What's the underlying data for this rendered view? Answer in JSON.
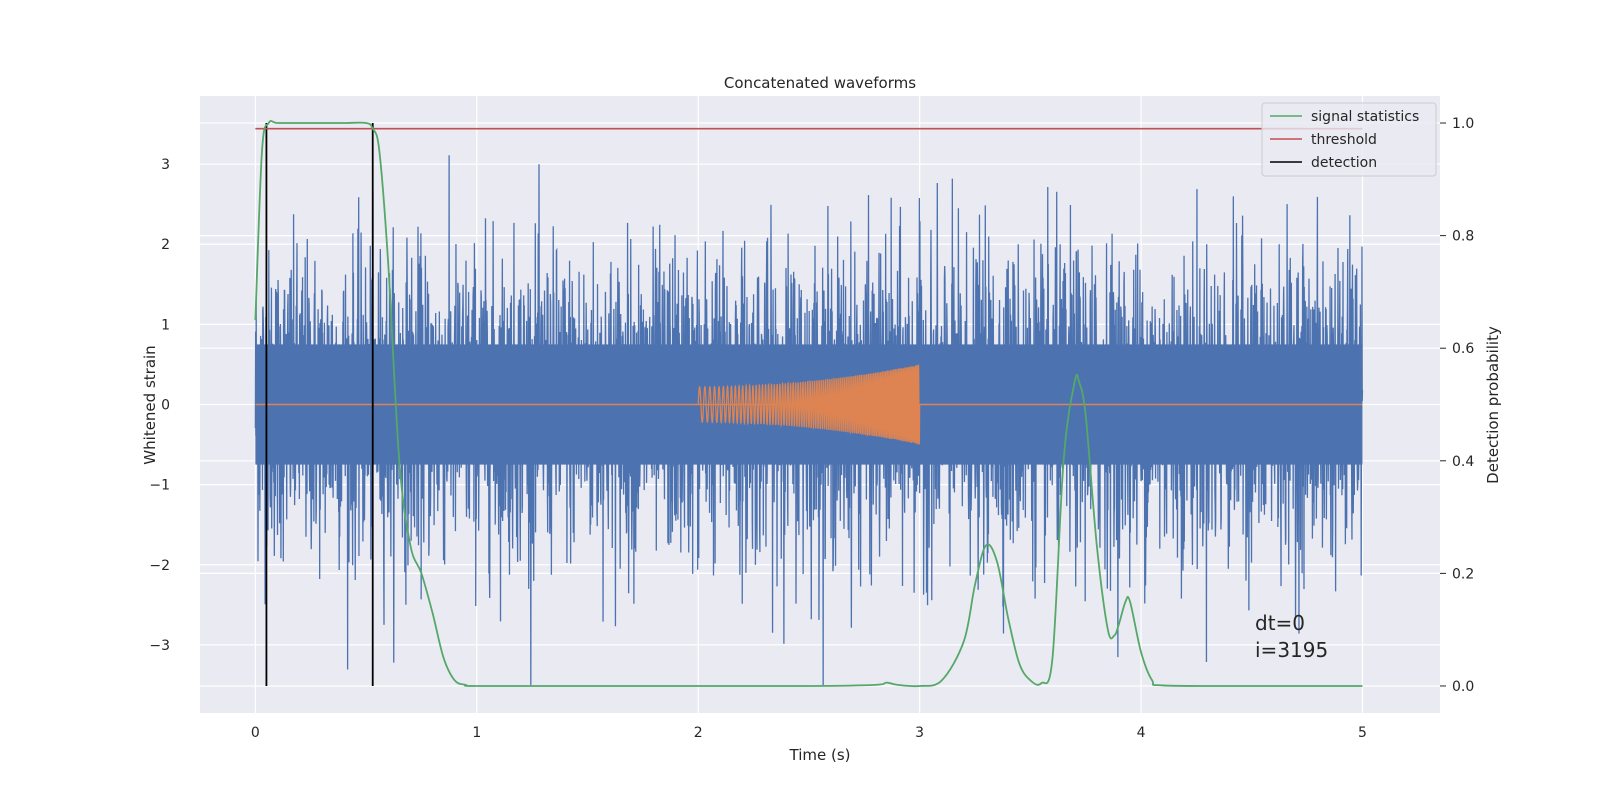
{
  "chart_data": {
    "type": "line",
    "title": "Concatenated waveforms",
    "xlabel": "Time (s)",
    "ylabel": "Whitened strain",
    "y2label": "Detection probability",
    "xlim": [
      -0.25,
      5.35
    ],
    "ylim": [
      -3.85,
      3.85
    ],
    "y2lim": [
      -0.048,
      1.048
    ],
    "x_ticks": [
      0,
      1,
      2,
      3,
      4,
      5
    ],
    "y_ticks": [
      -3,
      -2,
      -1,
      0,
      1,
      2,
      3
    ],
    "y_tick_labels": [
      "−3",
      "−2",
      "−1",
      "0",
      "1",
      "2",
      "3"
    ],
    "y2_ticks": [
      0.0,
      0.2,
      0.4,
      0.6,
      0.8,
      1.0
    ],
    "y2_tick_labels": [
      "0.0",
      "0.2",
      "0.4",
      "0.6",
      "0.8",
      "1.0"
    ],
    "grid": true,
    "legend_position": "top-right",
    "colors": {
      "noise": "#4c72b0",
      "injected_signal": "#dd8452",
      "signal_statistics": "#55a868",
      "threshold": "#c44e52",
      "detection": "#000000",
      "plot_background": "#eaeaf2"
    },
    "noise_series": {
      "x_range": [
        0,
        5
      ],
      "typical_abs_range": [
        1.0,
        2.0
      ],
      "peak_max": 3.3,
      "peak_min": -3.5
    },
    "injected_signal": {
      "x_range": [
        2.0,
        3.0
      ],
      "amplitude_start": 0.22,
      "amplitude_end": 0.5,
      "chirp": true
    },
    "series": [
      {
        "name": "signal statistics",
        "axis": "right",
        "x": [
          0.0,
          0.03,
          0.06,
          0.1,
          0.2,
          0.3,
          0.4,
          0.5,
          0.53,
          0.56,
          0.6,
          0.65,
          0.7,
          0.75,
          0.8,
          0.85,
          0.9,
          0.95,
          1.0,
          1.5,
          2.0,
          2.5,
          2.8,
          2.85,
          2.9,
          3.0,
          3.1,
          3.2,
          3.25,
          3.3,
          3.35,
          3.4,
          3.45,
          3.5,
          3.55,
          3.6,
          3.65,
          3.7,
          3.72,
          3.75,
          3.8,
          3.85,
          3.88,
          3.9,
          3.93,
          3.95,
          4.0,
          4.05,
          4.1,
          4.5,
          5.0
        ],
        "values": [
          0.65,
          0.95,
          1.0,
          1.0,
          1.0,
          1.0,
          1.0,
          1.0,
          0.99,
          0.95,
          0.75,
          0.4,
          0.25,
          0.2,
          0.13,
          0.05,
          0.01,
          0.002,
          0.0,
          0.0,
          0.0,
          0.0,
          0.002,
          0.006,
          0.002,
          0.0,
          0.01,
          0.08,
          0.18,
          0.25,
          0.22,
          0.12,
          0.04,
          0.01,
          0.005,
          0.05,
          0.4,
          0.54,
          0.54,
          0.48,
          0.25,
          0.1,
          0.09,
          0.11,
          0.15,
          0.15,
          0.06,
          0.01,
          0.001,
          0.0,
          0.0
        ]
      },
      {
        "name": "threshold",
        "axis": "right",
        "x": [
          0.0,
          5.0
        ],
        "values": [
          0.99,
          0.99
        ]
      },
      {
        "name": "detection",
        "axis": "right",
        "x_positions": [
          0.05,
          0.53
        ],
        "span": [
          0.0,
          1.0
        ]
      }
    ],
    "annotations": [
      "dt=0",
      "i=3195"
    ]
  }
}
